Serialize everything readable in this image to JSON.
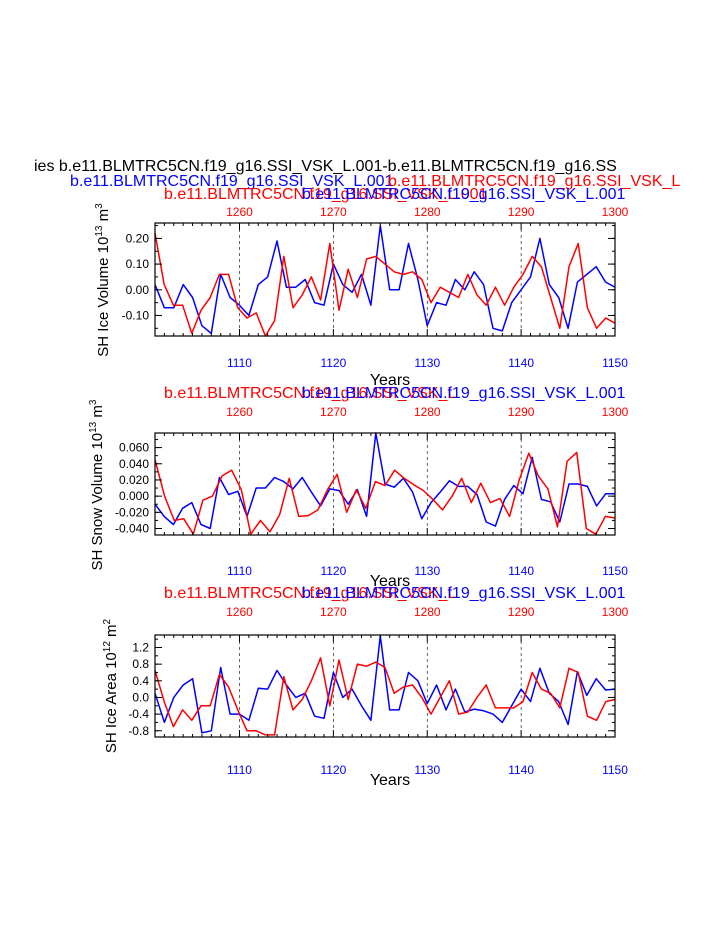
{
  "header": {
    "line1": "ies b.e11.BLMTRC5CN.f19_g16.SSI_VSK_L.001-b.e11.BLMTRC5CN.f19_g16.SS",
    "line2a": "b.e11.BLMTRC5CN.f19_g16.SSI_VSK_L.001",
    "line2b": "b.e11.BLMTRC5CN.f19_g16.SSI_VSK_L",
    "line3a": "b.e11.BLMTRC5CN.f19_g16.SSI_VSK_L.001",
    "line3b": "b.e11.BLMTRC5CN.f19_g16.SSI_VSK_L.001"
  },
  "colors": {
    "red": "#ff0000",
    "blue": "#0000ff"
  },
  "chart_data": [
    {
      "type": "line",
      "ylabel": "SH Ice Volume 10",
      "ylabel_exp": "13",
      "ylabel_unit": "m",
      "ylabel_unit_exp": "3",
      "xlabel": "Years",
      "top_title_red": "b.e11.BLMTRC5CN.f19_g16.SSI_VSK_L",
      "top_title_blue": "b.e11.BLMTRC5CN.f19_g16.SSI_VSK_L.001",
      "top_axis": {
        "range": [
          1251,
          1300
        ],
        "ticks": [
          1260,
          1270,
          1280,
          1290,
          1300
        ],
        "labels": [
          "1260",
          "1270",
          "1280",
          "1290",
          "1300"
        ]
      },
      "bottom_axis": {
        "range": [
          1101,
          1150
        ],
        "ticks": [
          1110,
          1120,
          1130,
          1140,
          1150
        ],
        "labels": [
          "1110",
          "1120",
          "1130",
          "1140",
          "1150"
        ]
      },
      "ylim": [
        -0.18,
        0.26
      ],
      "yticks": [
        -0.1,
        0.0,
        0.1,
        0.2
      ],
      "ytick_labels": [
        "-0.10",
        "0.00",
        "0.10",
        "0.20"
      ],
      "series": [
        {
          "name": "blue",
          "color": "#0000ff",
          "values": [
            0.02,
            -0.07,
            -0.07,
            0.02,
            -0.03,
            -0.14,
            -0.17,
            0.06,
            -0.03,
            -0.06,
            -0.1,
            0.02,
            0.05,
            0.19,
            0.01,
            0.01,
            0.04,
            -0.05,
            -0.06,
            0.1,
            0.02,
            -0.01,
            0.06,
            -0.06,
            0.25,
            0.0,
            0.0,
            0.18,
            0.04,
            -0.14,
            -0.05,
            -0.06,
            0.04,
            0.0,
            0.07,
            0.02,
            -0.15,
            -0.16,
            -0.05,
            0.0,
            0.05,
            0.2,
            0.02,
            -0.03,
            -0.15,
            0.03,
            0.06,
            0.09,
            0.03,
            0.01
          ]
        },
        {
          "name": "red",
          "color": "#ff0000",
          "values": [
            0.22,
            0.02,
            -0.06,
            -0.06,
            -0.17,
            -0.08,
            -0.03,
            0.06,
            0.06,
            -0.07,
            -0.11,
            -0.09,
            -0.18,
            -0.12,
            0.13,
            -0.07,
            -0.02,
            0.05,
            -0.04,
            0.18,
            -0.08,
            0.08,
            -0.03,
            0.12,
            0.13,
            0.1,
            0.07,
            0.06,
            0.07,
            0.04,
            -0.05,
            0.01,
            -0.01,
            -0.03,
            0.06,
            -0.02,
            -0.06,
            0.01,
            -0.06,
            0.01,
            0.06,
            0.13,
            0.09,
            -0.03,
            -0.15,
            0.09,
            0.18,
            -0.07,
            -0.15,
            -0.11,
            -0.13
          ]
        }
      ]
    },
    {
      "type": "line",
      "ylabel": "SH Snow Volume 10",
      "ylabel_exp": "13",
      "ylabel_unit": "m",
      "ylabel_unit_exp": "3",
      "xlabel": "Years",
      "top_title_red": "b.e11.BLMTRC5CN.f19_g16.SSI_VSK_L",
      "top_title_blue": "b.e11.BLMTRC5CN.f19_g16.SSI_VSK_L.001",
      "top_axis": {
        "range": [
          1251,
          1300
        ],
        "ticks": [
          1260,
          1270,
          1280,
          1290,
          1300
        ],
        "labels": [
          "1260",
          "1270",
          "1280",
          "1290",
          "1300"
        ]
      },
      "bottom_axis": {
        "range": [
          1101,
          1150
        ],
        "ticks": [
          1110,
          1120,
          1130,
          1140,
          1150
        ],
        "labels": [
          "1110",
          "1120",
          "1130",
          "1140",
          "1150"
        ]
      },
      "ylim": [
        -0.048,
        0.078
      ],
      "yticks": [
        -0.04,
        -0.02,
        0.0,
        0.02,
        0.04,
        0.06
      ],
      "ytick_labels": [
        "-0.040",
        "-0.020",
        "0.000",
        "0.020",
        "0.040",
        "0.060"
      ],
      "series": [
        {
          "name": "blue",
          "color": "#0000ff",
          "values": [
            -0.01,
            -0.025,
            -0.035,
            -0.015,
            -0.008,
            -0.035,
            -0.04,
            0.023,
            0.002,
            0.006,
            -0.025,
            0.01,
            0.01,
            0.023,
            0.018,
            0.009,
            0.023,
            0.005,
            -0.012,
            0.009,
            0.007,
            -0.01,
            0.008,
            -0.025,
            0.078,
            0.015,
            0.011,
            0.022,
            0.005,
            -0.028,
            -0.008,
            0.005,
            0.019,
            0.012,
            0.012,
            0.002,
            -0.032,
            -0.037,
            -0.004,
            0.013,
            0.003,
            0.048,
            -0.004,
            -0.007,
            -0.032,
            0.015,
            0.015,
            0.012,
            -0.012,
            0.003,
            0.003
          ]
        },
        {
          "name": "red",
          "color": "#ff0000",
          "values": [
            0.045,
            0.0,
            -0.03,
            -0.028,
            -0.047,
            -0.005,
            0.0,
            0.025,
            0.032,
            0.008,
            -0.047,
            -0.03,
            -0.044,
            -0.023,
            0.022,
            -0.025,
            -0.024,
            -0.017,
            0.008,
            0.027,
            -0.02,
            0.008,
            -0.015,
            0.018,
            0.013,
            0.032,
            0.022,
            0.014,
            0.007,
            -0.004,
            -0.017,
            0.0,
            0.022,
            -0.008,
            0.016,
            -0.008,
            -0.003,
            -0.025,
            0.02,
            0.053,
            0.025,
            0.009,
            -0.038,
            0.043,
            0.054,
            -0.04,
            -0.047,
            -0.025,
            -0.027
          ]
        }
      ]
    },
    {
      "type": "line",
      "ylabel": "SH Ice Area 10",
      "ylabel_exp": "12",
      "ylabel_unit": "m",
      "ylabel_unit_exp": "2",
      "xlabel": "Years",
      "top_title_red": "b.e11.BLMTRC5CN.f19_g16.SSI_VSK_L",
      "top_title_blue": "b.e11.BLMTRC5CN.f19_g16.SSI_VSK_L.001",
      "top_axis": {
        "range": [
          1251,
          1300
        ],
        "ticks": [
          1260,
          1270,
          1280,
          1290,
          1300
        ],
        "labels": [
          "1260",
          "1270",
          "1280",
          "1290",
          "1300"
        ]
      },
      "bottom_axis": {
        "range": [
          1101,
          1150
        ],
        "ticks": [
          1110,
          1120,
          1130,
          1140,
          1150
        ],
        "labels": [
          "1110",
          "1120",
          "1130",
          "1140",
          "1150"
        ]
      },
      "ylim": [
        -0.95,
        1.5
      ],
      "yticks": [
        -0.8,
        -0.4,
        0.0,
        0.4,
        0.8,
        1.2
      ],
      "ytick_labels": [
        "-0.8",
        "-0.4",
        "0.0",
        "0.4",
        "0.8",
        "1.2"
      ],
      "series": [
        {
          "name": "blue",
          "color": "#0000ff",
          "values": [
            0.1,
            -0.6,
            0.0,
            0.3,
            0.45,
            -0.85,
            -0.8,
            0.72,
            -0.4,
            -0.4,
            -0.55,
            0.22,
            0.2,
            0.65,
            0.3,
            0.0,
            0.1,
            -0.45,
            -0.5,
            0.6,
            0.0,
            0.2,
            -0.2,
            -0.55,
            1.48,
            -0.3,
            -0.3,
            0.6,
            0.4,
            -0.15,
            0.3,
            -0.3,
            0.2,
            -0.35,
            -0.28,
            -0.32,
            -0.4,
            -0.6,
            -0.2,
            0.2,
            -0.1,
            0.7,
            0.1,
            -0.1,
            -0.65,
            0.62,
            0.05,
            0.45,
            0.18,
            0.2
          ]
        },
        {
          "name": "red",
          "color": "#ff0000",
          "values": [
            0.65,
            -0.1,
            -0.7,
            -0.3,
            -0.55,
            -0.2,
            -0.2,
            0.55,
            0.25,
            -0.3,
            -0.8,
            -0.8,
            -0.9,
            -0.9,
            0.5,
            -0.3,
            -0.05,
            0.4,
            0.95,
            -0.2,
            0.9,
            -0.05,
            0.8,
            0.75,
            0.85,
            0.72,
            0.1,
            0.25,
            0.3,
            0.0,
            -0.4,
            0.0,
            0.4,
            -0.4,
            -0.35,
            0.0,
            0.3,
            -0.25,
            -0.25,
            -0.25,
            -0.1,
            0.6,
            0.2,
            0.1,
            -0.25,
            0.7,
            0.6,
            -0.45,
            -0.55,
            -0.1,
            -0.05
          ]
        }
      ]
    }
  ]
}
